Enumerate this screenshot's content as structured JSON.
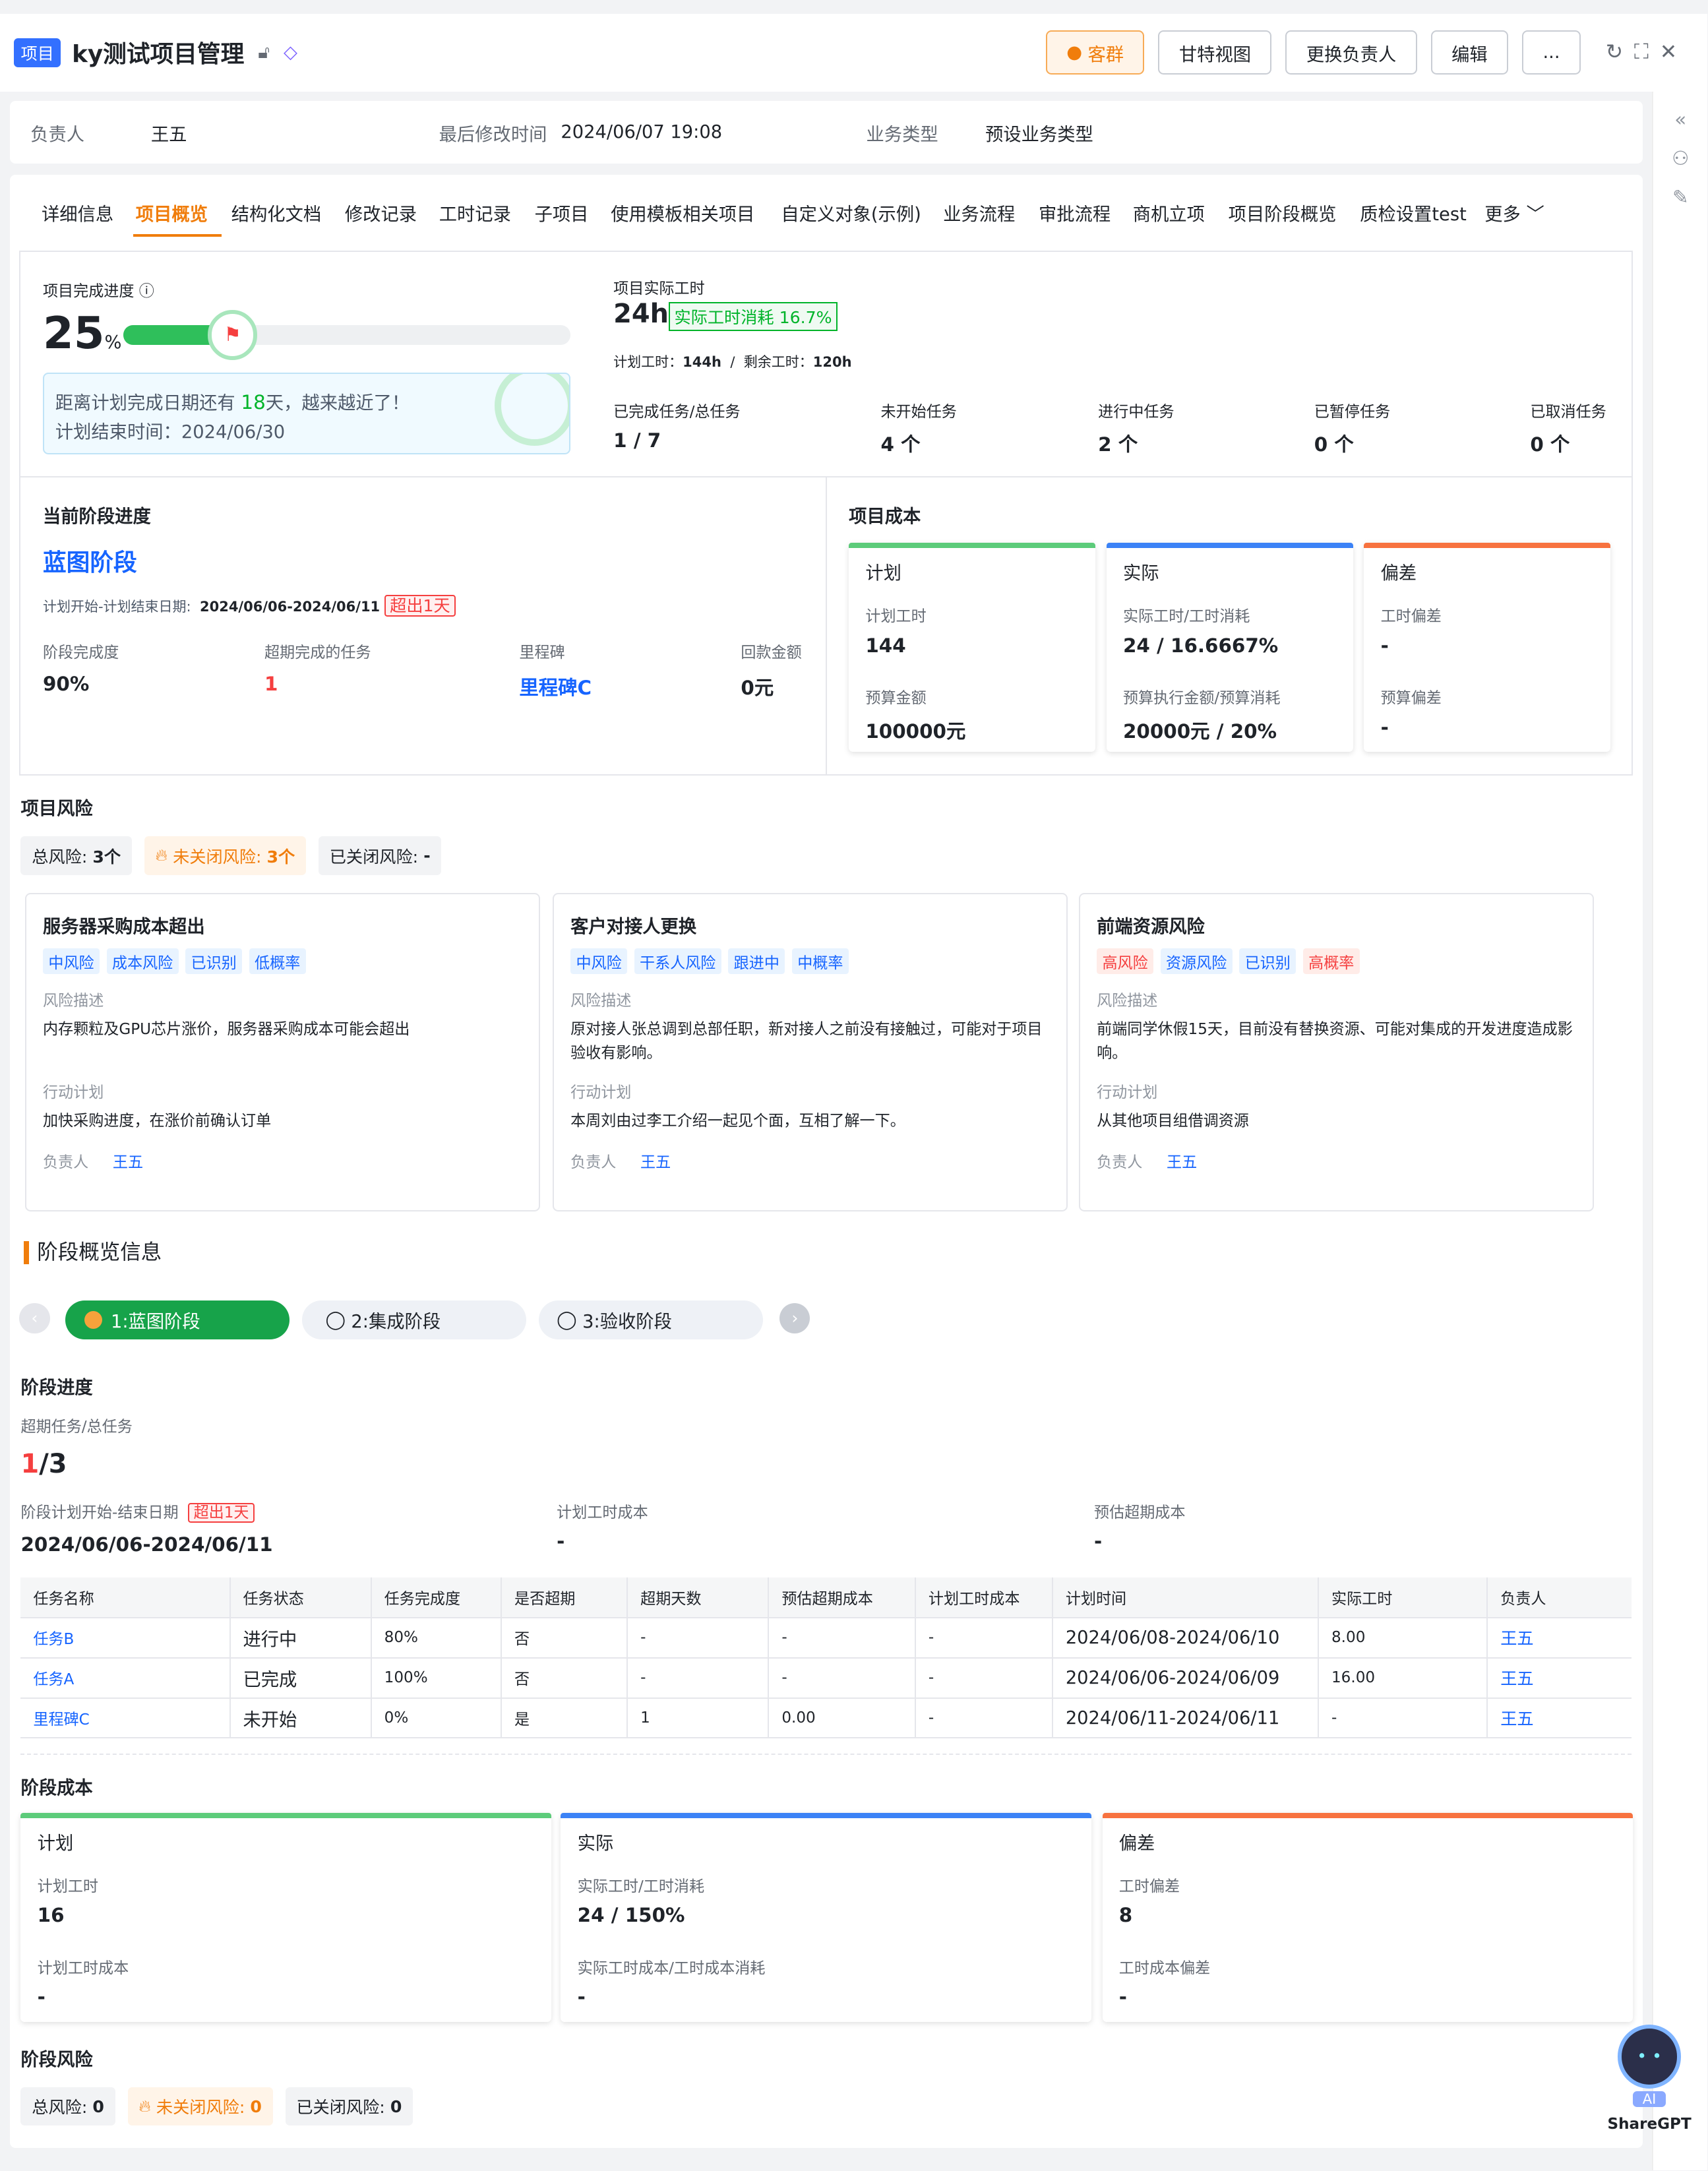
{
  "header": {
    "tag": "项目",
    "title": "ky测试项目管理",
    "buttons": [
      "客群",
      "甘特视图",
      "更换负责人",
      "编辑",
      "..."
    ]
  },
  "infobar": {
    "owner_label": "负责人",
    "owner": "王五",
    "modified_label": "最后修改时间",
    "modified": "2024/06/07 19:08",
    "biztype_label": "业务类型",
    "biztype": "预设业务类型"
  },
  "tabs": [
    "详细信息",
    "项目概览",
    "结构化文档",
    "修改记录",
    "工时记录",
    "子项目",
    "使用模板相关项目",
    "自定义对象(示例)",
    "业务流程",
    "审批流程",
    "商机立项",
    "项目阶段概览",
    "质检设置test",
    "更多"
  ],
  "progress": {
    "label": "项目完成进度",
    "pct_num": "25",
    "pct_unit": "%",
    "fill": 0.25,
    "remind_prefix": "距离计划完成日期还有",
    "remind_days": "18",
    "remind_suffix": "天，越来越近了！",
    "end_label": "计划结束时间：",
    "end": "2024/06/30"
  },
  "hours": {
    "label": "项目实际工时",
    "value": "24h",
    "consume": "实际工时消耗 16.7%",
    "plan_label": "计划工时：",
    "plan": "144h",
    "sep": "/",
    "remain_label": "剩余工时：",
    "remain": "120h"
  },
  "task_stats": [
    {
      "label": "已完成任务/总任务",
      "value": "1 / 7"
    },
    {
      "label": "未开始任务",
      "value": "4 个"
    },
    {
      "label": "进行中任务",
      "value": "2 个"
    },
    {
      "label": "已暂停任务",
      "value": "0 个"
    },
    {
      "label": "已取消任务",
      "value": "0 个"
    }
  ],
  "stage": {
    "title": "当前阶段进度",
    "name": "蓝图阶段",
    "date_label": "计划开始-计划结束日期:",
    "date": "2024/06/06-2024/06/11",
    "over": "超出1天",
    "complete_label": "阶段完成度",
    "complete": "90%",
    "overdue_label": "超期完成的任务",
    "overdue": "1",
    "milestone_label": "里程碑",
    "milestone": "里程碑C",
    "payback_label": "回款金额",
    "payback": "0元"
  },
  "project_cost": {
    "title": "项目成本",
    "plan": {
      "title": "计划",
      "l1": "计划工时",
      "v1": "144",
      "l2": "预算金额",
      "v2": "100000元"
    },
    "actual": {
      "title": "实际",
      "l1": "实际工时/工时消耗",
      "v1": "24 / 16.6667%",
      "l2": "预算执行金额/预算消耗",
      "v2": "20000元 / 20%"
    },
    "dev": {
      "title": "偏差",
      "l1": "工时偏差",
      "v1": "-",
      "l2": "预算偏差",
      "v2": "-"
    }
  },
  "risk": {
    "title": "项目风险",
    "total_label": "总风险:",
    "total": "3个",
    "open_label": "未关闭风险:",
    "open": "3个",
    "closed_label": "已关闭风险:",
    "closed": "-",
    "cards": [
      {
        "title": "服务器采购成本超出",
        "tags": [
          "中风险",
          "成本风险",
          "已识别",
          "低概率"
        ],
        "desc_label": "风险描述",
        "desc": "内存颗粒及GPU芯片涨价，服务器采购成本可能会超出",
        "plan_label": "行动计划",
        "plan": "加快采购进度，在涨价前确认订单",
        "owner_label": "负责人",
        "owner": "王五"
      },
      {
        "title": "客户对接人更换",
        "tags": [
          "中风险",
          "干系人风险",
          "跟进中",
          "中概率"
        ],
        "desc_label": "风险描述",
        "desc": "原对接人张总调到总部任职，新对接人之前没有接触过，可能对于项目验收有影响。",
        "plan_label": "行动计划",
        "plan": "本周刘由过李工介绍一起见个面，互相了解一下。",
        "owner_label": "负责人",
        "owner": "王五"
      },
      {
        "title": "前端资源风险",
        "tags": [
          "高风险",
          "资源风险",
          "已识别",
          "高概率"
        ],
        "desc_label": "风险描述",
        "desc": "前端同学休假15天，目前没有替换资源、可能对集成的开发进度造成影响。",
        "plan_label": "行动计划",
        "plan": "从其他项目组借调资源",
        "owner_label": "负责人",
        "owner": "王五"
      }
    ]
  },
  "overview": {
    "title": "阶段概览信息",
    "stages": [
      "1:蓝图阶段",
      "2:集成阶段",
      "3:验收阶段"
    ],
    "progress_title": "阶段进度",
    "overdue_label": "超期任务/总任务",
    "overdue_num": "1",
    "overdue_total": "/3",
    "date_label": "阶段计划开始-结束日期",
    "date_over": "超出1天",
    "date": "2024/06/06-2024/06/11",
    "plan_cost_label": "计划工时成本",
    "plan_cost": "-",
    "est_cost_label": "预估超期成本",
    "est_cost": "-"
  },
  "table": {
    "headers": [
      "任务名称",
      "任务状态",
      "任务完成度",
      "是否超期",
      "超期天数",
      "预估超期成本",
      "计划工时成本",
      "计划时间",
      "实际工时",
      "负责人"
    ],
    "rows": [
      [
        "任务B",
        "进行中",
        "80%",
        "否",
        "-",
        "-",
        "-",
        "2024/06/08-2024/06/10",
        "8.00",
        "王五"
      ],
      [
        "任务A",
        "已完成",
        "100%",
        "否",
        "-",
        "-",
        "-",
        "2024/06/06-2024/06/09",
        "16.00",
        "王五"
      ],
      [
        "里程碑C",
        "未开始",
        "0%",
        "是",
        "1",
        "0.00",
        "-",
        "2024/06/11-2024/06/11",
        "-",
        "王五"
      ]
    ]
  },
  "stage_cost": {
    "title": "阶段成本",
    "plan": {
      "title": "计划",
      "l1": "计划工时",
      "v1": "16",
      "l2": "计划工时成本",
      "v2": "-"
    },
    "actual": {
      "title": "实际",
      "l1": "实际工时/工时消耗",
      "v1": "24 / 150%",
      "l2": "实际工时成本/工时成本消耗",
      "v2": "-"
    },
    "dev": {
      "title": "偏差",
      "l1": "工时偏差",
      "v1": "8",
      "l2": "工时成本偏差",
      "v2": "-"
    }
  },
  "stage_risk": {
    "title": "阶段风险",
    "total_label": "总风险:",
    "total": "0",
    "open_label": "未关闭风险:",
    "open": "0",
    "closed_label": "已关闭风险:",
    "closed": "0"
  },
  "bot": {
    "label": "ShareGPT",
    "badge": "AI"
  },
  "colors": {
    "accent": "#f07d0b",
    "link": "#1664ff",
    "green": "#00b42a",
    "red": "#f53f3f",
    "blue_bar": "#3b82f6",
    "orange_bar": "#f7723f",
    "green_bar": "#5ccb7a"
  }
}
